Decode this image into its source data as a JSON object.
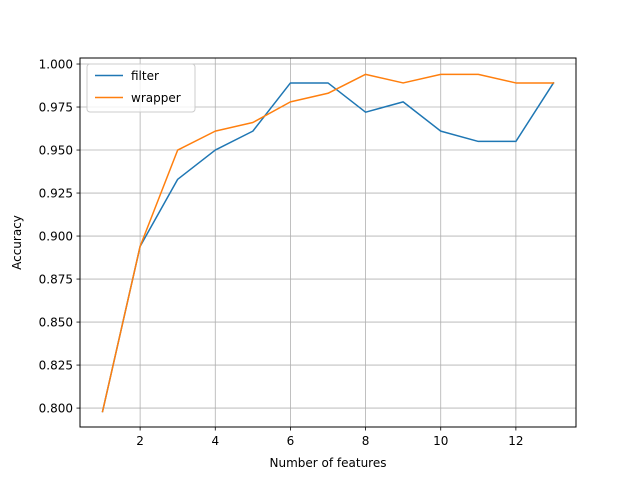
{
  "chart_data": {
    "type": "line",
    "title": "",
    "xlabel": "Number of features",
    "ylabel": "Accuracy",
    "x": [
      1,
      2,
      3,
      4,
      5,
      6,
      7,
      8,
      9,
      10,
      11,
      12,
      13
    ],
    "xlim": [
      0.4,
      13.6
    ],
    "ylim": [
      0.789,
      1.0035
    ],
    "xticks": [
      2,
      4,
      6,
      8,
      10,
      12
    ],
    "yticks": [
      0.8,
      0.825,
      0.85,
      0.875,
      0.9,
      0.925,
      0.95,
      0.975,
      1.0
    ],
    "xtick_labels": [
      "2",
      "4",
      "6",
      "8",
      "10",
      "12"
    ],
    "ytick_labels": [
      "0.800",
      "0.825",
      "0.850",
      "0.875",
      "0.900",
      "0.925",
      "0.950",
      "0.975",
      "1.000"
    ],
    "grid": true,
    "legend_position": "top-left",
    "series": [
      {
        "name": "filter",
        "color": "#1f77b4",
        "values": [
          0.798,
          0.894,
          0.933,
          0.95,
          0.961,
          0.989,
          0.989,
          0.972,
          0.978,
          0.961,
          0.955,
          0.955,
          0.989
        ]
      },
      {
        "name": "wrapper",
        "color": "#ff7f0e",
        "values": [
          0.798,
          0.894,
          0.95,
          0.961,
          0.966,
          0.978,
          0.983,
          0.994,
          0.989,
          0.994,
          0.994,
          0.989,
          0.989
        ]
      }
    ]
  }
}
